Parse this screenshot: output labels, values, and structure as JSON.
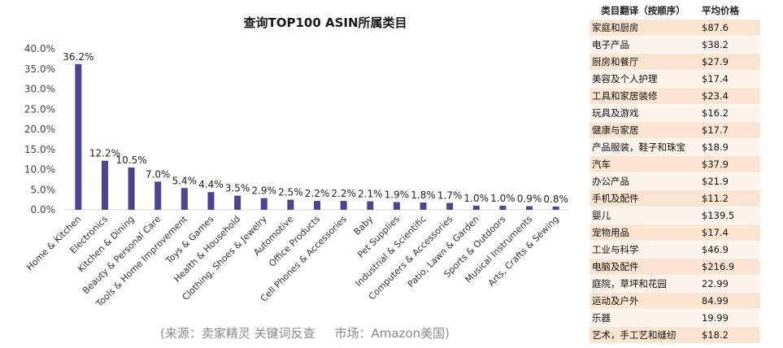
{
  "chart_data": {
    "type": "bar",
    "title": "查询TOP100 ASIN所属类目",
    "categories": [
      "Home & Kitchen",
      "Electronics",
      "Kitchen & Dining",
      "Beauty & Personal Care",
      "Tools & Home Improvement",
      "Toys & Games",
      "Health & Household",
      "Clothing, Shoes & Jewelry",
      "Automotive",
      "Office Products",
      "Cell Phones & Accessories",
      "Baby",
      "Pet Supplies",
      "Industrial & Scientific",
      "Computers & Accessories",
      "Patio, Lawn & Garden",
      "Sports & Outdoors",
      "Musical Instruments",
      "Arts, Crafts & Sewing"
    ],
    "values": [
      36.2,
      12.2,
      10.5,
      7.0,
      5.4,
      4.4,
      3.5,
      2.9,
      2.5,
      2.2,
      2.2,
      2.1,
      1.9,
      1.8,
      1.7,
      1.0,
      1.0,
      0.9,
      0.8
    ],
    "value_labels": [
      "36.2%",
      "12.2%",
      "10.5%",
      "7.0%",
      "5.4%",
      "4.4%",
      "3.5%",
      "2.9%",
      "2.5%",
      "2.2%",
      "2.2%",
      "2.1%",
      "1.9%",
      "1.8%",
      "1.7%",
      "1.0%",
      "1.0%",
      "0.9%",
      "0.8%"
    ],
    "ylim": [
      0,
      40
    ],
    "yticks": [
      "0.0%",
      "5.0%",
      "10.0%",
      "15.0%",
      "20.0%",
      "25.0%",
      "30.0%",
      "35.0%",
      "40.0%"
    ],
    "xlabel": "",
    "ylabel": "",
    "grid": false,
    "bar_color": "#4b4393"
  },
  "source_note": "(来源：卖家精灵 关键词反查     市场：Amazon美国)",
  "table": {
    "headers": [
      "类目翻译（按顺序）",
      "平均价格"
    ],
    "rows": [
      [
        "家庭和厨房",
        "$87.6"
      ],
      [
        "电子产品",
        "$38.2"
      ],
      [
        "厨房和餐厅",
        "$27.9"
      ],
      [
        "美容及个人护理",
        "$17.4"
      ],
      [
        "工具和家居装修",
        "$23.4"
      ],
      [
        "玩具及游戏",
        "$16.2"
      ],
      [
        "健康与家居",
        "$17.7"
      ],
      [
        "产品服装，鞋子和珠宝",
        "$18.9"
      ],
      [
        "汽车",
        "$37.9"
      ],
      [
        "办公产品",
        "$21.9"
      ],
      [
        "手机及配件",
        "$11.2"
      ],
      [
        "婴儿",
        "$139.5"
      ],
      [
        "宠物用品",
        "$17.4"
      ],
      [
        "工业与科学",
        "$46.9"
      ],
      [
        "电脑及配件",
        "$216.9"
      ],
      [
        "庭院，草坪和花园",
        "22.99"
      ],
      [
        "运动及户外",
        "84.99"
      ],
      [
        "乐器",
        "19.99"
      ],
      [
        "艺术，手工艺和缝纫",
        "$18.2"
      ]
    ],
    "row_colors": [
      "#fbe5d0",
      "#fdf3ea"
    ]
  }
}
